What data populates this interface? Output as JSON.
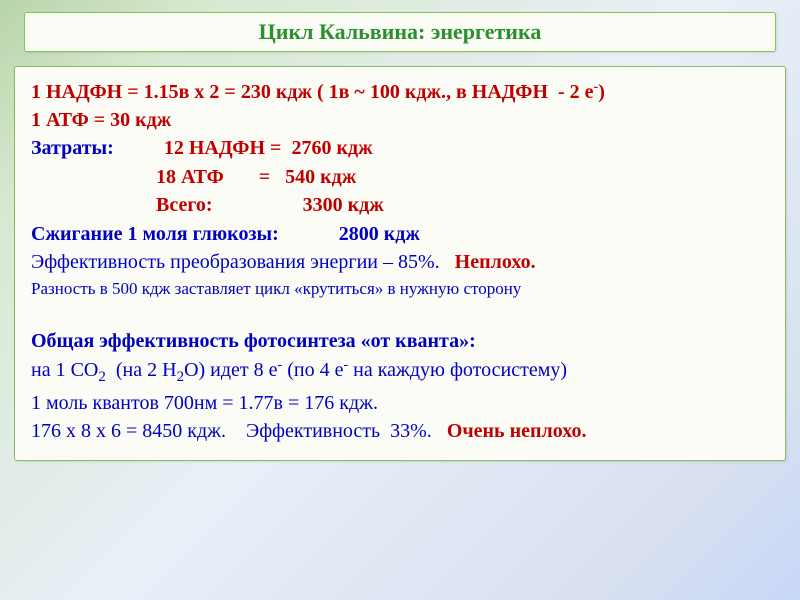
{
  "title": "Цикл Кальвина: энергетика",
  "lines": [
    {
      "cls": "line",
      "parts": [
        {
          "h": "1 НАДФН = 1.15в х 2 = 230 кдж ( 1в ~ 100 кдж., в НАДФН  - 2 е<sup>-</sup>)",
          "color": "red",
          "bold": true
        }
      ]
    },
    {
      "cls": "line",
      "parts": [
        {
          "h": "1 АТФ = 30 кдж",
          "color": "red",
          "bold": true
        }
      ]
    },
    {
      "cls": "line",
      "parts": [
        {
          "h": "Затраты:          ",
          "color": "blue",
          "bold": true
        },
        {
          "h": "12 НАДФН =  2760 кдж",
          "color": "red",
          "bold": true
        }
      ]
    },
    {
      "cls": "line",
      "parts": [
        {
          "h": "                         18 АТФ       =   540 кдж",
          "color": "red",
          "bold": true
        }
      ]
    },
    {
      "cls": "line",
      "parts": [
        {
          "h": "                         Всего:                  3300 кдж",
          "color": "red",
          "bold": true
        }
      ]
    },
    {
      "cls": "line",
      "parts": [
        {
          "h": "Сжигание 1 моля глюкозы:            2800 кдж",
          "color": "blue",
          "bold": true
        }
      ]
    },
    {
      "cls": "line",
      "parts": [
        {
          "h": "Эффективность преобразования энергии – 85%.   ",
          "color": "blue",
          "bold": false
        },
        {
          "h": "Неплохо.",
          "color": "red",
          "bold": true
        }
      ]
    },
    {
      "cls": "small-line",
      "parts": [
        {
          "h": "Разность в 500 кдж заставляет цикл «крутиться» в нужную сторону",
          "color": "blue",
          "bold": false
        }
      ]
    },
    {
      "cls": "small-line",
      "parts": [
        {
          "h": " ",
          "color": "blue",
          "bold": false
        }
      ]
    },
    {
      "cls": "line",
      "parts": [
        {
          "h": "Общая эффективность фотосинтеза «от кванта»:",
          "color": "blue",
          "bold": true
        }
      ]
    },
    {
      "cls": "line",
      "parts": [
        {
          "h": "на 1 СО<sub>2</sub>  (на 2 Н<sub>2</sub>О) идет 8 е<sup>-</sup> (по 4 е<sup>-</sup> на каждую фотосистему)",
          "color": "blue",
          "bold": false
        }
      ]
    },
    {
      "cls": "line",
      "parts": [
        {
          "h": "1 моль квантов 700нм = 1.77в = 176 кдж.",
          "color": "blue",
          "bold": false
        }
      ]
    },
    {
      "cls": "line",
      "parts": [
        {
          "h": "176 х 8 х 6 = 8450 кдж.    Эффективность  33%.   ",
          "color": "blue",
          "bold": false
        },
        {
          "h": "Очень неплохо.",
          "color": "red",
          "bold": true
        }
      ]
    }
  ]
}
